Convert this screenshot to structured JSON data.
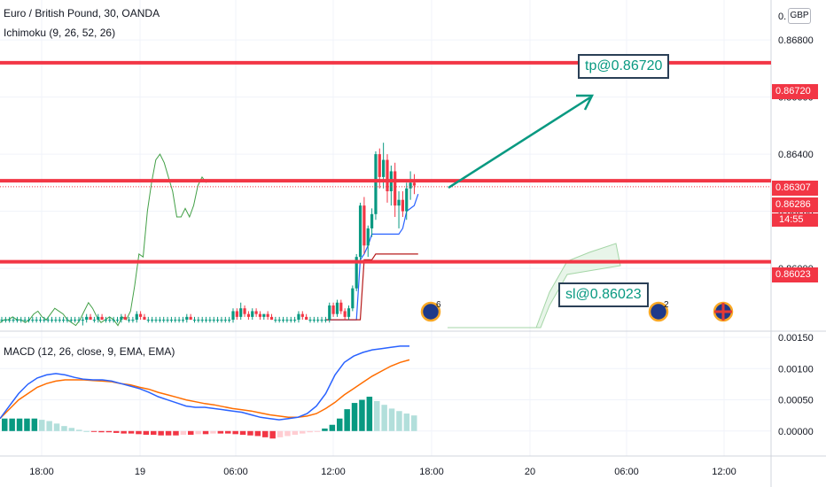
{
  "header": {
    "symbol_line": "Euro / British Pound, 30, OANDA",
    "ichimoku_label": "Ichimoku (9, 26, 52, 26)",
    "macd_label": "MACD (12, 26, close, 9, EMA, EMA)"
  },
  "currency_button": "GBP",
  "annotations": {
    "tp": "tp@0.86720",
    "sl": "sl@0.86023"
  },
  "price_tags": {
    "tp": "0.86720",
    "entry": "0.86307",
    "current": "0.86286",
    "countdown": "14:55",
    "sl": "0.86023"
  },
  "event_badges": [
    "6",
    "2"
  ],
  "colors": {
    "up": "#089981",
    "down": "#f23645",
    "macd": "#2962ff",
    "signal": "#ff6d00",
    "level": "#f23645",
    "arrow": "#089981",
    "hist_up_light": "#b2dfdb",
    "hist_down_light": "#ffcdd2"
  },
  "chart_data": {
    "type": "candlestick",
    "price_axis": {
      "ticks": [
        "0.86800",
        "0.86600",
        "0.86400",
        "0.86200",
        "0.86000"
      ],
      "range": [
        0.8578,
        0.8694
      ],
      "top_label": "0."
    },
    "macd_axis": {
      "ticks": [
        "0.00150",
        "0.00100",
        "0.00050",
        "0.00000"
      ],
      "range": [
        -0.0004,
        0.0016
      ]
    },
    "time_axis": {
      "labels": [
        "18:00",
        "19",
        "06:00",
        "12:00",
        "18:00",
        "20",
        "06:00",
        "12:00"
      ]
    },
    "levels": [
      {
        "name": "take-profit",
        "value": 0.8672
      },
      {
        "name": "entry",
        "value": 0.86307
      },
      {
        "name": "stop-loss",
        "value": 0.86023
      }
    ],
    "candles": [
      [
        0.8582,
        0.8583,
        0.8581,
        0.8582
      ],
      [
        0.8582,
        0.8583,
        0.8581,
        0.8582
      ],
      [
        0.8582,
        0.8583,
        0.8581,
        0.8582
      ],
      [
        0.8582,
        0.8583,
        0.8581,
        0.8582
      ],
      [
        0.8582,
        0.8583,
        0.8581,
        0.8582
      ],
      [
        0.8582,
        0.8583,
        0.8581,
        0.8582
      ],
      [
        0.8582,
        0.8583,
        0.8581,
        0.8582
      ],
      [
        0.8582,
        0.8583,
        0.8581,
        0.8582
      ],
      [
        0.8582,
        0.8583,
        0.8581,
        0.8582
      ],
      [
        0.8582,
        0.8583,
        0.8581,
        0.8582
      ],
      [
        0.8582,
        0.8583,
        0.8581,
        0.8582
      ],
      [
        0.8582,
        0.8583,
        0.8581,
        0.8582
      ],
      [
        0.8582,
        0.8583,
        0.8581,
        0.8582
      ],
      [
        0.8582,
        0.8583,
        0.8581,
        0.8582
      ],
      [
        0.8582,
        0.8583,
        0.8581,
        0.8582
      ],
      [
        0.8582,
        0.8583,
        0.8581,
        0.8582
      ],
      [
        0.8582,
        0.8583,
        0.8581,
        0.8582
      ],
      [
        0.8582,
        0.8583,
        0.8581,
        0.8582
      ],
      [
        0.8582,
        0.8583,
        0.8581,
        0.8582
      ],
      [
        0.8582,
        0.8583,
        0.8581,
        0.8582
      ],
      [
        0.8582,
        0.8583,
        0.8581,
        0.8582
      ],
      [
        0.8582,
        0.8583,
        0.858,
        0.8582
      ],
      [
        0.8582,
        0.8584,
        0.8581,
        0.8583
      ],
      [
        0.8583,
        0.8584,
        0.8582,
        0.8582
      ],
      [
        0.8582,
        0.8583,
        0.8581,
        0.8582
      ],
      [
        0.8582,
        0.8584,
        0.8581,
        0.8583
      ],
      [
        0.8583,
        0.8584,
        0.8582,
        0.8582
      ],
      [
        0.8582,
        0.8583,
        0.8581,
        0.8582
      ],
      [
        0.8582,
        0.8583,
        0.8581,
        0.8582
      ],
      [
        0.8582,
        0.8583,
        0.8581,
        0.8582
      ],
      [
        0.8582,
        0.8583,
        0.8581,
        0.8582
      ],
      [
        0.8582,
        0.8584,
        0.8581,
        0.8583
      ],
      [
        0.8583,
        0.8584,
        0.8582,
        0.8582
      ],
      [
        0.8582,
        0.8583,
        0.8581,
        0.8582
      ],
      [
        0.8582,
        0.8583,
        0.8581,
        0.8582
      ],
      [
        0.8582,
        0.8585,
        0.8581,
        0.8584
      ],
      [
        0.8584,
        0.8585,
        0.8582,
        0.8583
      ],
      [
        0.8583,
        0.8584,
        0.8582,
        0.8582
      ],
      [
        0.8582,
        0.8583,
        0.8581,
        0.8582
      ],
      [
        0.8582,
        0.8583,
        0.8581,
        0.8582
      ],
      [
        0.8582,
        0.8583,
        0.8581,
        0.8582
      ],
      [
        0.8582,
        0.8583,
        0.8581,
        0.8582
      ],
      [
        0.8582,
        0.8583,
        0.8581,
        0.8582
      ],
      [
        0.8582,
        0.8583,
        0.8581,
        0.8582
      ],
      [
        0.8582,
        0.8583,
        0.8581,
        0.8582
      ],
      [
        0.8582,
        0.8583,
        0.8581,
        0.8582
      ],
      [
        0.8582,
        0.8583,
        0.8581,
        0.8582
      ],
      [
        0.8582,
        0.8583,
        0.8581,
        0.8582
      ],
      [
        0.8582,
        0.8584,
        0.8581,
        0.8583
      ],
      [
        0.8583,
        0.8584,
        0.8582,
        0.8582
      ],
      [
        0.8582,
        0.8583,
        0.8581,
        0.8582
      ],
      [
        0.8582,
        0.8583,
        0.8581,
        0.8582
      ],
      [
        0.8582,
        0.8583,
        0.8581,
        0.8582
      ],
      [
        0.8582,
        0.8583,
        0.8581,
        0.8582
      ],
      [
        0.8582,
        0.8583,
        0.8581,
        0.8582
      ],
      [
        0.8582,
        0.8583,
        0.8581,
        0.8582
      ],
      [
        0.8582,
        0.8583,
        0.8581,
        0.8582
      ],
      [
        0.8582,
        0.8583,
        0.8581,
        0.8582
      ],
      [
        0.8582,
        0.8583,
        0.8581,
        0.8582
      ],
      [
        0.8582,
        0.8583,
        0.8581,
        0.8582
      ],
      [
        0.8582,
        0.8586,
        0.8581,
        0.8585
      ],
      [
        0.8585,
        0.8586,
        0.8582,
        0.8583
      ],
      [
        0.8583,
        0.8588,
        0.8582,
        0.8586
      ],
      [
        0.8586,
        0.8587,
        0.8583,
        0.8584
      ],
      [
        0.8584,
        0.8585,
        0.8582,
        0.8583
      ],
      [
        0.8583,
        0.8586,
        0.8582,
        0.8585
      ],
      [
        0.8585,
        0.8586,
        0.8583,
        0.8584
      ],
      [
        0.8584,
        0.8585,
        0.8582,
        0.8583
      ],
      [
        0.8583,
        0.8584,
        0.8582,
        0.8584
      ],
      [
        0.8584,
        0.8585,
        0.8582,
        0.8583
      ],
      [
        0.8583,
        0.8584,
        0.8582,
        0.8582
      ],
      [
        0.8582,
        0.8583,
        0.8581,
        0.8582
      ],
      [
        0.8582,
        0.8583,
        0.8581,
        0.8582
      ],
      [
        0.8582,
        0.8583,
        0.8581,
        0.8582
      ],
      [
        0.8582,
        0.8583,
        0.8581,
        0.8582
      ],
      [
        0.8582,
        0.8583,
        0.8581,
        0.8582
      ],
      [
        0.8582,
        0.8583,
        0.8581,
        0.8582
      ],
      [
        0.8582,
        0.8585,
        0.8581,
        0.8584
      ],
      [
        0.8584,
        0.8585,
        0.8582,
        0.8583
      ],
      [
        0.8583,
        0.8584,
        0.8582,
        0.8582
      ],
      [
        0.8582,
        0.8583,
        0.8581,
        0.8582
      ],
      [
        0.8582,
        0.8583,
        0.8581,
        0.8582
      ],
      [
        0.8582,
        0.8583,
        0.8581,
        0.8582
      ],
      [
        0.8582,
        0.8583,
        0.8581,
        0.8582
      ],
      [
        0.8582,
        0.8583,
        0.8581,
        0.8582
      ],
      [
        0.8582,
        0.8588,
        0.8581,
        0.8587
      ],
      [
        0.8587,
        0.8588,
        0.8583,
        0.8584
      ],
      [
        0.8584,
        0.8589,
        0.8583,
        0.8588
      ],
      [
        0.8588,
        0.8589,
        0.8584,
        0.8585
      ],
      [
        0.8585,
        0.8586,
        0.8582,
        0.8583
      ],
      [
        0.8583,
        0.8587,
        0.8582,
        0.8586
      ],
      [
        0.8586,
        0.8594,
        0.8585,
        0.8593
      ],
      [
        0.8593,
        0.8605,
        0.8592,
        0.8604
      ],
      [
        0.8604,
        0.8623,
        0.8603,
        0.8622
      ],
      [
        0.8622,
        0.8625,
        0.8605,
        0.8608
      ],
      [
        0.8608,
        0.8615,
        0.8604,
        0.8614
      ],
      [
        0.8614,
        0.8621,
        0.8611,
        0.8619
      ],
      [
        0.8619,
        0.8641,
        0.8617,
        0.864
      ],
      [
        0.864,
        0.8642,
        0.8628,
        0.8632
      ],
      [
        0.8632,
        0.8644,
        0.8628,
        0.8638
      ],
      [
        0.8638,
        0.864,
        0.8623,
        0.8627
      ],
      [
        0.8627,
        0.8636,
        0.8622,
        0.8634
      ],
      [
        0.8634,
        0.8637,
        0.8618,
        0.8622
      ],
      [
        0.8622,
        0.8627,
        0.8614,
        0.8624
      ],
      [
        0.8624,
        0.8627,
        0.8618,
        0.862
      ],
      [
        0.862,
        0.863,
        0.8617,
        0.8628
      ],
      [
        0.8628,
        0.8634,
        0.8624,
        0.863
      ],
      [
        0.863,
        0.8633,
        0.8626,
        0.8629
      ]
    ],
    "ichimoku": {
      "chikou": [
        0.8581,
        0.8582,
        0.8582,
        0.8583,
        0.8582,
        0.8582,
        0.8581,
        0.8582,
        0.8584,
        0.8585,
        0.8583,
        0.8582,
        0.8584,
        0.8586,
        0.8585,
        0.8584,
        0.8582,
        0.8581,
        0.858,
        0.8582,
        0.8585,
        0.8588,
        0.8586,
        0.8583,
        0.8581,
        0.8582,
        0.8583,
        0.8582,
        0.858,
        0.8583,
        0.8582,
        0.8585,
        0.8594,
        0.8605,
        0.8604,
        0.862,
        0.863,
        0.8638,
        0.864,
        0.8637,
        0.8632,
        0.8627,
        0.8618,
        0.8618,
        0.8621,
        0.8618,
        0.8622,
        0.8629,
        0.8632,
        0.863
      ],
      "tenkan": [
        0.8582,
        0.8582,
        0.8582,
        0.8582,
        0.8582,
        0.8582,
        0.8582,
        0.8582,
        0.8582,
        0.8603,
        0.8605,
        0.8608,
        0.8612,
        0.8612,
        0.8612,
        0.8612,
        0.8612,
        0.8612,
        0.8612,
        0.8612,
        0.8614,
        0.862,
        0.8621,
        0.8622,
        0.8626
      ],
      "kijun": [
        0.8582,
        0.8582,
        0.8582,
        0.8582,
        0.8582,
        0.8582,
        0.8582,
        0.8582,
        0.8582,
        0.8582,
        0.8603,
        0.8603,
        0.8603,
        0.8605,
        0.8605,
        0.8605,
        0.8605,
        0.8605,
        0.8605,
        0.8605,
        0.8605,
        0.8605,
        0.8605,
        0.8605,
        0.8605
      ]
    },
    "macd": {
      "line": [
        0.0002,
        0.0004,
        0.0006,
        0.00075,
        0.00085,
        0.0009,
        0.00092,
        0.0009,
        0.00086,
        0.00083,
        0.00082,
        0.00082,
        0.0008,
        0.00076,
        0.00072,
        0.00068,
        0.00062,
        0.00055,
        0.0005,
        0.00045,
        0.0004,
        0.00038,
        0.00038,
        0.00036,
        0.00034,
        0.00032,
        0.0003,
        0.00026,
        0.00022,
        0.0002,
        0.00018,
        0.0002,
        0.00022,
        0.00028,
        0.0004,
        0.0006,
        0.0009,
        0.0011,
        0.0012,
        0.00126,
        0.0013,
        0.00132,
        0.00134,
        0.00136,
        0.00136
      ],
      "signal": [
        0.0002,
        0.00035,
        0.0005,
        0.0006,
        0.0007,
        0.00076,
        0.0008,
        0.00082,
        0.00082,
        0.00082,
        0.00081,
        0.0008,
        0.00079,
        0.00076,
        0.00074,
        0.0007,
        0.00067,
        0.00062,
        0.00058,
        0.00054,
        0.0005,
        0.00047,
        0.00044,
        0.00042,
        0.00039,
        0.00036,
        0.00034,
        0.00032,
        0.00029,
        0.00026,
        0.00024,
        0.00022,
        0.00022,
        0.00024,
        0.00028,
        0.00036,
        0.00046,
        0.00058,
        0.00068,
        0.00078,
        0.00088,
        0.00096,
        0.00104,
        0.0011,
        0.00114
      ],
      "histogram": [
        0.0002,
        0.0002,
        0.0002,
        0.0002,
        0.0002,
        0.00018,
        0.00016,
        0.00012,
        8e-05,
        5e-05,
        2e-05,
        0.0,
        -1e-05,
        -2e-05,
        -2e-05,
        -3e-05,
        -4e-05,
        -4e-05,
        -5e-05,
        -6e-05,
        -6e-05,
        -7e-05,
        -7e-05,
        -7e-05,
        -6e-05,
        -6e-05,
        -5e-05,
        -5e-05,
        -4e-05,
        -4e-05,
        -4e-05,
        -5e-05,
        -6e-05,
        -7e-05,
        -8e-05,
        -0.0001,
        -0.00012,
        -0.0001,
        -8e-05,
        -6e-05,
        -4e-05,
        -2e-05,
        -1e-05,
        4e-05,
        0.0001,
        0.0002,
        0.00035,
        0.00045,
        0.0005,
        0.00055,
        0.00048,
        0.00042,
        0.00036,
        0.00032,
        0.00028,
        0.00025
      ]
    }
  }
}
